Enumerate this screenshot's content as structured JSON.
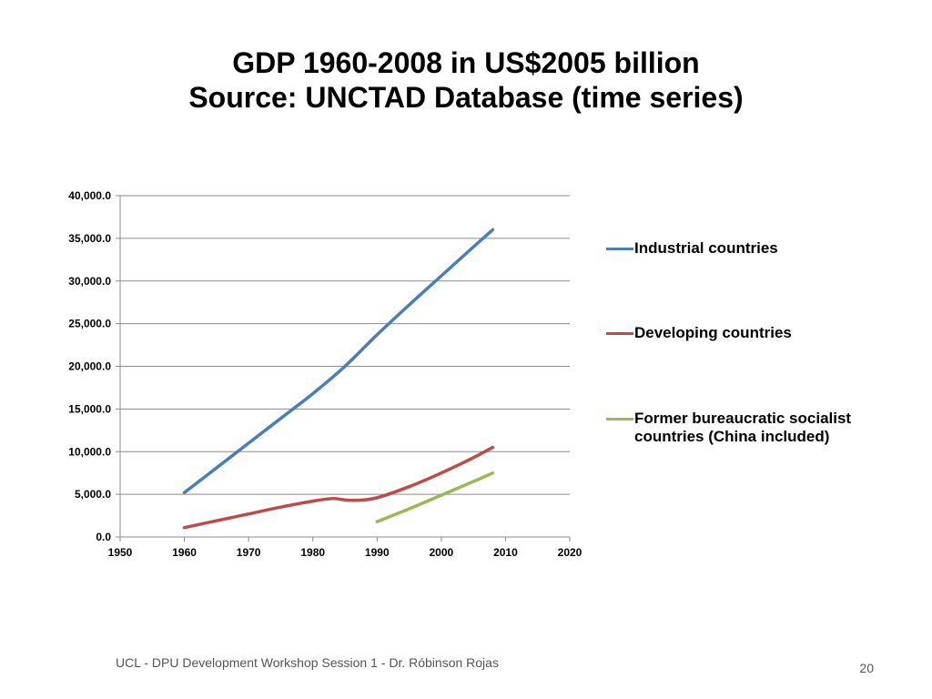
{
  "slide": {
    "title_line1": "GDP 1960-2008 in US$2005 billion",
    "title_line2": "Source: UNCTAD Database (time series)",
    "footer": "UCL - DPU Development Workshop Session 1 - Dr. Róbinson Rojas",
    "page_number": "20"
  },
  "chart_data": {
    "type": "line",
    "title": "",
    "xlabel": "",
    "ylabel": "",
    "xlim": [
      1950,
      2020
    ],
    "ylim": [
      0,
      40000
    ],
    "x_ticks": [
      "1950",
      "1960",
      "1970",
      "1980",
      "1990",
      "2000",
      "2010",
      "2020"
    ],
    "y_ticks": [
      "0.0",
      "5,000.0",
      "10,000.0",
      "15,000.0",
      "20,000.0",
      "25,000.0",
      "30,000.0",
      "35,000.0",
      "40,000.0"
    ],
    "grid": "horizontal",
    "legend_position": "right",
    "series": [
      {
        "name": "Industrial countries",
        "color": "#4a7ebb",
        "points": [
          [
            1960,
            5200
          ],
          [
            1965,
            8100
          ],
          [
            1970,
            11000
          ],
          [
            1975,
            13900
          ],
          [
            1980,
            16800
          ],
          [
            1985,
            20000
          ],
          [
            1990,
            23700
          ],
          [
            1995,
            27200
          ],
          [
            2000,
            30600
          ],
          [
            2005,
            34000
          ],
          [
            2008,
            36000
          ]
        ]
      },
      {
        "name": "Developing countries",
        "color": "#be4b48",
        "points": [
          [
            1960,
            1100
          ],
          [
            1965,
            1900
          ],
          [
            1970,
            2700
          ],
          [
            1975,
            3500
          ],
          [
            1980,
            4200
          ],
          [
            1983,
            4500
          ],
          [
            1985,
            4350
          ],
          [
            1987,
            4300
          ],
          [
            1990,
            4600
          ],
          [
            1995,
            5900
          ],
          [
            2000,
            7500
          ],
          [
            2005,
            9300
          ],
          [
            2008,
            10500
          ]
        ]
      },
      {
        "name": "Former bureaucratic socialist countries (China included)",
        "color": "#98b954",
        "points": [
          [
            1990,
            1800
          ],
          [
            1995,
            3300
          ],
          [
            2000,
            4900
          ],
          [
            2005,
            6500
          ],
          [
            2008,
            7500
          ]
        ]
      }
    ]
  }
}
